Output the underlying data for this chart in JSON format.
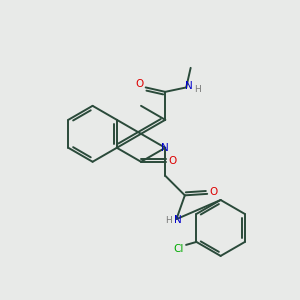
{
  "background_color": "#e8eae8",
  "bond_color": "#2a4a3a",
  "atom_colors": {
    "O": "#dd0000",
    "N": "#0000cc",
    "Cl": "#00aa00",
    "C": "#2a4a3a",
    "H": "#777777"
  },
  "bond_lw": 1.4,
  "font_size_atom": 7.5,
  "font_size_small": 6.5,
  "scale": 1.0
}
